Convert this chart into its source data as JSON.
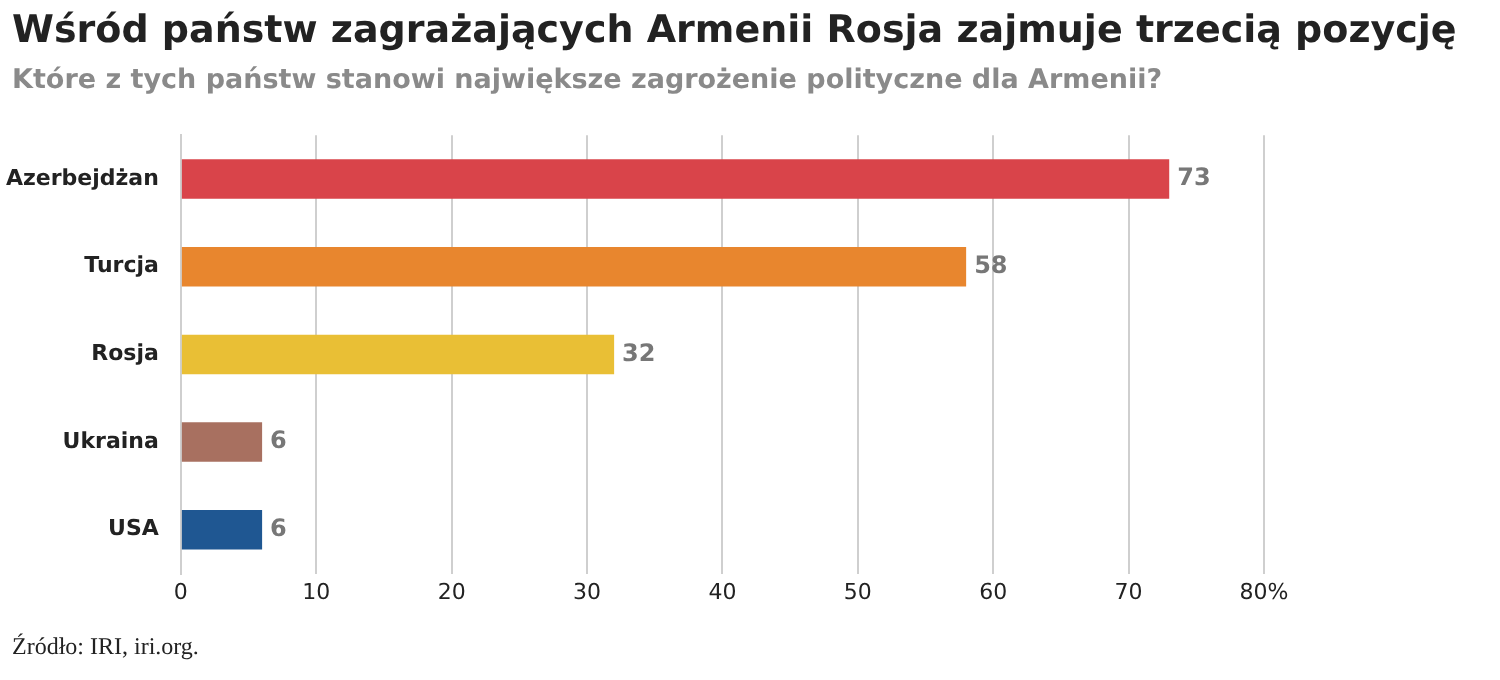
{
  "chart_data": {
    "type": "bar",
    "orientation": "horizontal",
    "title": "Wśród państw zagrażających Armenii Rosja zajmuje trzecią pozycję",
    "subtitle": "Które z tych państw stanowi największe zagrożenie polityczne dla Armenii?",
    "categories": [
      "Azerbejdżan",
      "Turcja",
      "Rosja",
      "Ukraina",
      "USA"
    ],
    "values": [
      73,
      58,
      32,
      6,
      6
    ],
    "colors": [
      "#d9444a",
      "#e8862e",
      "#e9bf35",
      "#a87060",
      "#1f5792"
    ],
    "xlim": [
      0,
      80
    ],
    "xticks": [
      0,
      10,
      20,
      30,
      40,
      50,
      60,
      70,
      {
        "value": 80,
        "label": "80%"
      }
    ],
    "grid": "x",
    "data_labels": true,
    "annotations": [
      "Źródło: IRI, iri.org."
    ]
  }
}
